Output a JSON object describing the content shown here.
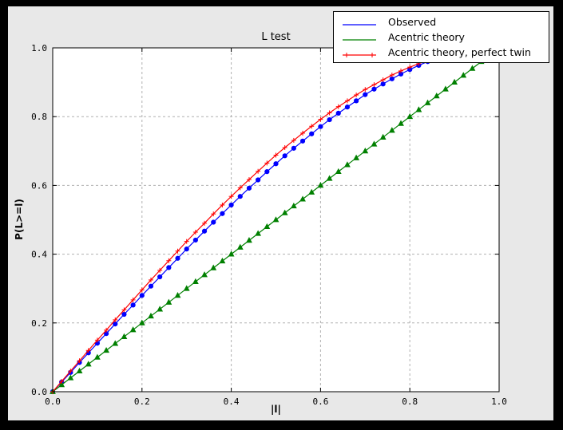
{
  "window": {
    "background": "#000000",
    "figure_background": "#e8e8e8",
    "plot_background": "#ffffff"
  },
  "chart_data": {
    "type": "line",
    "title": "L test",
    "xlabel": "|l|",
    "ylabel": "P(L>=l)",
    "xlim": [
      0.0,
      1.0
    ],
    "ylim": [
      0.0,
      1.0
    ],
    "grid": "dashed",
    "grid_color": "#b0b0b0",
    "legend_position": "upper right",
    "xticks": [
      0.0,
      0.2,
      0.4,
      0.6,
      0.8,
      1.0
    ],
    "yticks": [
      0.0,
      0.2,
      0.4,
      0.6,
      0.8,
      1.0
    ],
    "xtick_labels": [
      "0.0",
      "0.2",
      "0.4",
      "0.6",
      "0.8",
      "1.0"
    ],
    "ytick_labels": [
      "0.0",
      "0.2",
      "0.4",
      "0.6",
      "0.8",
      "1.0"
    ],
    "series": [
      {
        "name": "Observed",
        "color": "#0000ff",
        "marker": "circle",
        "legend_markers": false,
        "x": [
          0.0,
          0.02,
          0.04,
          0.06,
          0.08,
          0.1,
          0.12,
          0.14,
          0.16,
          0.18,
          0.2,
          0.22,
          0.24,
          0.26,
          0.28,
          0.3,
          0.32,
          0.34,
          0.36,
          0.38,
          0.4,
          0.42,
          0.44,
          0.46,
          0.48,
          0.5,
          0.52,
          0.54,
          0.56,
          0.58,
          0.6,
          0.62,
          0.64,
          0.66,
          0.68,
          0.7,
          0.72,
          0.74,
          0.76,
          0.78,
          0.8,
          0.82,
          0.84,
          0.86
        ],
        "y": [
          0.0,
          0.028,
          0.056,
          0.085,
          0.113,
          0.141,
          0.169,
          0.197,
          0.225,
          0.252,
          0.28,
          0.307,
          0.334,
          0.361,
          0.388,
          0.415,
          0.441,
          0.467,
          0.493,
          0.518,
          0.543,
          0.568,
          0.592,
          0.616,
          0.64,
          0.663,
          0.686,
          0.708,
          0.729,
          0.75,
          0.771,
          0.791,
          0.81,
          0.828,
          0.846,
          0.864,
          0.88,
          0.895,
          0.91,
          0.924,
          0.937,
          0.949,
          0.96,
          0.97
        ]
      },
      {
        "name": "Acentric theory",
        "color": "#008000",
        "marker": "triangle-up",
        "legend_markers": false,
        "x": [
          0.0,
          0.02,
          0.04,
          0.06,
          0.08,
          0.1,
          0.12,
          0.14,
          0.16,
          0.18,
          0.2,
          0.22,
          0.24,
          0.26,
          0.28,
          0.3,
          0.32,
          0.34,
          0.36,
          0.38,
          0.4,
          0.42,
          0.44,
          0.46,
          0.48,
          0.5,
          0.52,
          0.54,
          0.56,
          0.58,
          0.6,
          0.62,
          0.64,
          0.66,
          0.68,
          0.7,
          0.72,
          0.74,
          0.76,
          0.78,
          0.8,
          0.82,
          0.84,
          0.86,
          0.88,
          0.9,
          0.92,
          0.94,
          0.96
        ],
        "y": [
          0.0,
          0.02,
          0.04,
          0.06,
          0.08,
          0.1,
          0.12,
          0.14,
          0.16,
          0.18,
          0.2,
          0.22,
          0.24,
          0.26,
          0.28,
          0.3,
          0.32,
          0.34,
          0.36,
          0.38,
          0.4,
          0.42,
          0.44,
          0.46,
          0.48,
          0.5,
          0.52,
          0.54,
          0.56,
          0.58,
          0.6,
          0.62,
          0.64,
          0.66,
          0.68,
          0.7,
          0.72,
          0.74,
          0.76,
          0.78,
          0.8,
          0.82,
          0.84,
          0.86,
          0.88,
          0.9,
          0.92,
          0.94,
          0.96
        ]
      },
      {
        "name": "Acentric theory, perfect twin",
        "color": "#ff0000",
        "marker": "plus",
        "legend_markers": true,
        "x": [
          0.0,
          0.02,
          0.04,
          0.06,
          0.08,
          0.1,
          0.12,
          0.14,
          0.16,
          0.18,
          0.2,
          0.22,
          0.24,
          0.26,
          0.28,
          0.3,
          0.32,
          0.34,
          0.36,
          0.38,
          0.4,
          0.42,
          0.44,
          0.46,
          0.48,
          0.5,
          0.52,
          0.54,
          0.56,
          0.58,
          0.6,
          0.62,
          0.64,
          0.66,
          0.68,
          0.7,
          0.72,
          0.74,
          0.76,
          0.78,
          0.8,
          0.82
        ],
        "y": [
          0.0,
          0.03,
          0.06,
          0.09,
          0.12,
          0.15,
          0.179,
          0.209,
          0.238,
          0.267,
          0.296,
          0.325,
          0.353,
          0.381,
          0.409,
          0.437,
          0.464,
          0.49,
          0.517,
          0.543,
          0.568,
          0.593,
          0.617,
          0.641,
          0.665,
          0.688,
          0.71,
          0.731,
          0.752,
          0.772,
          0.792,
          0.811,
          0.829,
          0.846,
          0.863,
          0.879,
          0.893,
          0.907,
          0.921,
          0.933,
          0.944,
          0.954
        ]
      }
    ]
  }
}
